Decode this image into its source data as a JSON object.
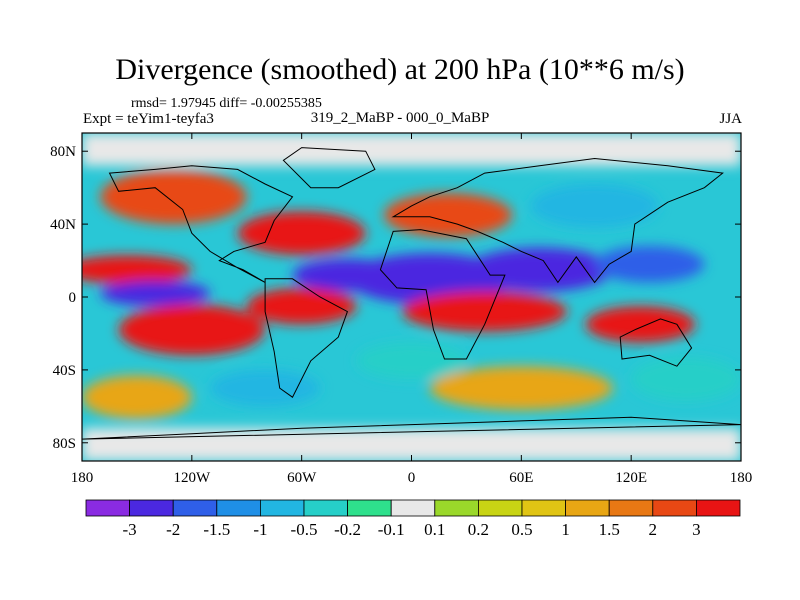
{
  "title": "Divergence (smoothed) at 200 hPa (10**6 m/s)",
  "stats_text": "rmsd= 1.97945 diff= -0.00255385",
  "expt_text": "Expt = teYim1-teyfa3",
  "diff_text": "319_2_MaBP - 000_0_MaBP",
  "season": "JJA",
  "chart_data": {
    "type": "heatmap",
    "title": "Divergence (smoothed) at 200 hPa (10**6 m/s)",
    "x_range": [
      -180,
      180
    ],
    "y_range": [
      -90,
      90
    ],
    "x_ticks": [
      {
        "value": -180,
        "label": "180"
      },
      {
        "value": -120,
        "label": "120W"
      },
      {
        "value": -60,
        "label": "60W"
      },
      {
        "value": 0,
        "label": "0"
      },
      {
        "value": 60,
        "label": "60E"
      },
      {
        "value": 120,
        "label": "120E"
      },
      {
        "value": 180,
        "label": "180"
      }
    ],
    "y_ticks": [
      {
        "value": 80,
        "label": "80N"
      },
      {
        "value": 40,
        "label": "40N"
      },
      {
        "value": 0,
        "label": "0"
      },
      {
        "value": -40,
        "label": "40S"
      },
      {
        "value": -80,
        "label": "80S"
      }
    ],
    "colorbar": {
      "colors": [
        "#8a2be2",
        "#4b28e0",
        "#2f5fe8",
        "#1f8fe6",
        "#22b6e2",
        "#26cfc8",
        "#2ee08c",
        "#e8e8e8",
        "#9ad82a",
        "#c8d414",
        "#e0c414",
        "#e8a614",
        "#e87814",
        "#e84814",
        "#e81414"
      ],
      "labels": [
        "-3",
        "-2",
        "-1.5",
        "-1",
        "-0.5",
        "-0.2",
        "-0.1",
        "0.1",
        "0.2",
        "0.5",
        "1",
        "1.5",
        "2",
        "3"
      ]
    },
    "features": [
      {
        "lon": -155,
        "lat": 15,
        "rx": 35,
        "ry": 8,
        "value": 3
      },
      {
        "lon": -140,
        "lat": 2,
        "rx": 30,
        "ry": 7,
        "value": -3
      },
      {
        "lon": -120,
        "lat": -18,
        "rx": 40,
        "ry": 14,
        "value": 3
      },
      {
        "lon": -60,
        "lat": -5,
        "rx": 30,
        "ry": 10,
        "value": 3
      },
      {
        "lon": -35,
        "lat": 12,
        "rx": 30,
        "ry": 9,
        "value": -3
      },
      {
        "lon": 10,
        "lat": 10,
        "rx": 45,
        "ry": 14,
        "value": -3
      },
      {
        "lon": 70,
        "lat": 15,
        "rx": 40,
        "ry": 12,
        "value": -3
      },
      {
        "lon": 130,
        "lat": 18,
        "rx": 30,
        "ry": 10,
        "value": -2
      },
      {
        "lon": 40,
        "lat": -8,
        "rx": 45,
        "ry": 11,
        "value": 3
      },
      {
        "lon": 125,
        "lat": -15,
        "rx": 30,
        "ry": 10,
        "value": 3
      },
      {
        "lon": -60,
        "lat": 35,
        "rx": 35,
        "ry": 12,
        "value": 3
      },
      {
        "lon": 20,
        "lat": 45,
        "rx": 35,
        "ry": 12,
        "value": 2
      },
      {
        "lon": 100,
        "lat": 50,
        "rx": 35,
        "ry": 12,
        "value": -1
      },
      {
        "lon": -130,
        "lat": 55,
        "rx": 40,
        "ry": 15,
        "value": 2
      },
      {
        "lon": -80,
        "lat": -50,
        "rx": 30,
        "ry": 10,
        "value": -1
      },
      {
        "lon": 60,
        "lat": -50,
        "rx": 50,
        "ry": 12,
        "value": 1
      },
      {
        "lon": 150,
        "lat": -45,
        "rx": 30,
        "ry": 12,
        "value": -0.5
      },
      {
        "lon": -150,
        "lat": -55,
        "rx": 30,
        "ry": 12,
        "value": 1
      },
      {
        "lon": 0,
        "lat": -35,
        "rx": 30,
        "ry": 10,
        "value": -0.5
      }
    ]
  }
}
